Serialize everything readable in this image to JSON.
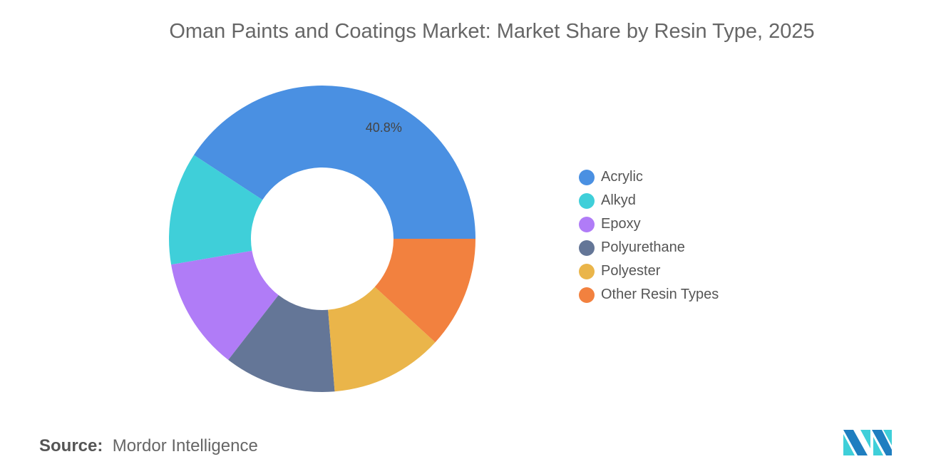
{
  "chart_data": {
    "type": "pie",
    "donut": true,
    "title": "Oman Paints and Coatings Market: Market Share by Resin Type, 2025",
    "categories": [
      "Acrylic",
      "Alkyd",
      "Epoxy",
      "Polyurethane",
      "Polyester",
      "Other Resin Types"
    ],
    "values": [
      40.8,
      11.9,
      11.8,
      11.8,
      11.9,
      11.8
    ],
    "colors": [
      "#4a90e2",
      "#3fcfd9",
      "#b07cf7",
      "#647697",
      "#eab54a",
      "#f2813f"
    ],
    "data_labels": [
      "40.8%",
      "",
      "",
      "",
      "",
      ""
    ],
    "legend_position": "right"
  },
  "source": {
    "label": "Source:",
    "value": "Mordor Intelligence"
  }
}
